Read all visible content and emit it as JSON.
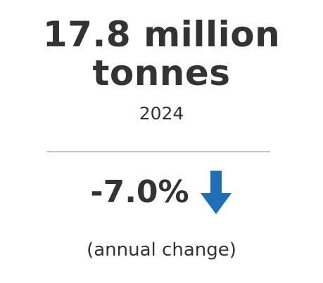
{
  "stat": {
    "value_line1": "17.8 million",
    "value_line2": "tonnes",
    "year": "2024"
  },
  "change": {
    "value": "-7.0%",
    "direction_icon": "arrow-down-icon",
    "note": "(annual change)"
  },
  "colors": {
    "text": "#333333",
    "divider": "#c6c6c6",
    "arrow": "#1f6fb8"
  }
}
